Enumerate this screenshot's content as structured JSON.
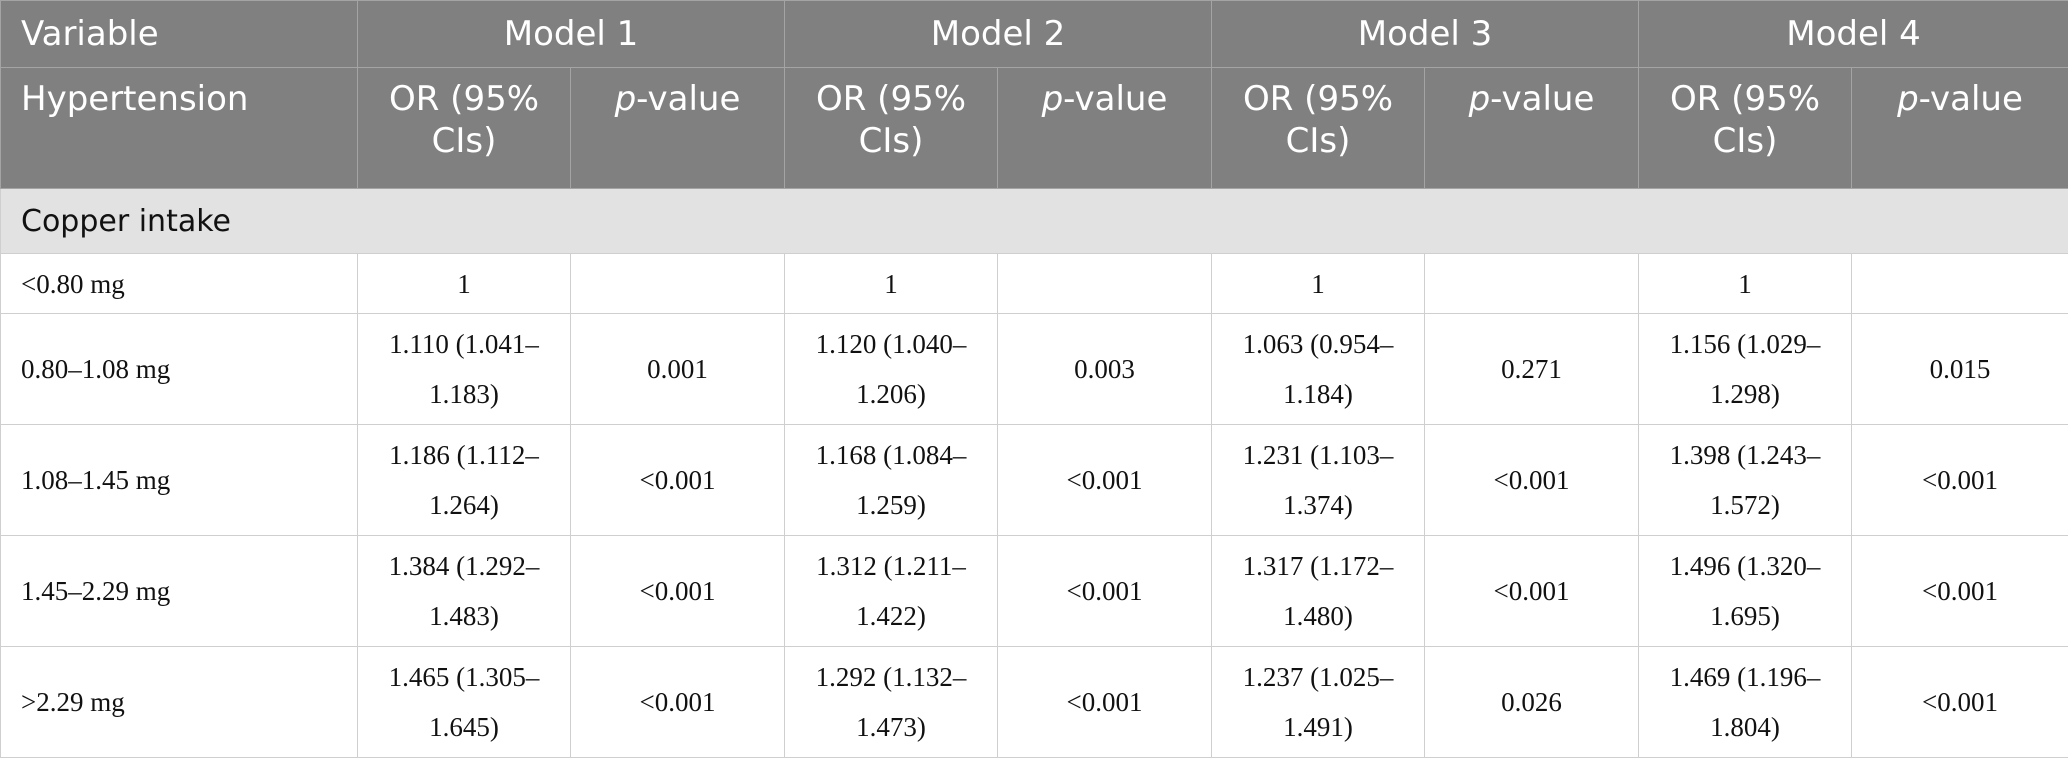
{
  "header": {
    "variable_label": "Variable",
    "outcome_label": "Hypertension",
    "models": [
      "Model 1",
      "Model 2",
      "Model 3",
      "Model 4"
    ],
    "or_label": "OR (95% CIs)",
    "p_label_italic": "p",
    "p_label_suffix": "-value"
  },
  "section": {
    "title": "Copper intake"
  },
  "rows": [
    {
      "label": "<0.80 mg",
      "cells": [
        {
          "or": "1",
          "p": ""
        },
        {
          "or": "1",
          "p": ""
        },
        {
          "or": "1",
          "p": ""
        },
        {
          "or": "1",
          "p": ""
        }
      ]
    },
    {
      "label": "0.80–1.08 mg",
      "cells": [
        {
          "or": "1.110 (1.041–1.183)",
          "p": "0.001"
        },
        {
          "or": "1.120 (1.040–1.206)",
          "p": "0.003"
        },
        {
          "or": "1.063 (0.954–1.184)",
          "p": "0.271"
        },
        {
          "or": "1.156 (1.029–1.298)",
          "p": "0.015"
        }
      ]
    },
    {
      "label": "1.08–1.45 mg",
      "cells": [
        {
          "or": "1.186 (1.112–1.264)",
          "p": "<0.001"
        },
        {
          "or": "1.168 (1.084–1.259)",
          "p": "<0.001"
        },
        {
          "or": "1.231 (1.103–1.374)",
          "p": "<0.001"
        },
        {
          "or": "1.398 (1.243–1.572)",
          "p": "<0.001"
        }
      ]
    },
    {
      "label": "1.45–2.29 mg",
      "cells": [
        {
          "or": "1.384 (1.292–1.483)",
          "p": "<0.001"
        },
        {
          "or": "1.312 (1.211–1.422)",
          "p": "<0.001"
        },
        {
          "or": "1.317 (1.172–1.480)",
          "p": "<0.001"
        },
        {
          "or": "1.496 (1.320–1.695)",
          "p": "<0.001"
        }
      ]
    },
    {
      "label": ">2.29 mg",
      "cells": [
        {
          "or": "1.465 (1.305–1.645)",
          "p": "<0.001"
        },
        {
          "or": "1.292 (1.132–1.473)",
          "p": "<0.001"
        },
        {
          "or": "1.237 (1.025–1.491)",
          "p": "0.026"
        },
        {
          "or": "1.469 (1.196–1.804)",
          "p": "<0.001"
        }
      ]
    }
  ]
}
